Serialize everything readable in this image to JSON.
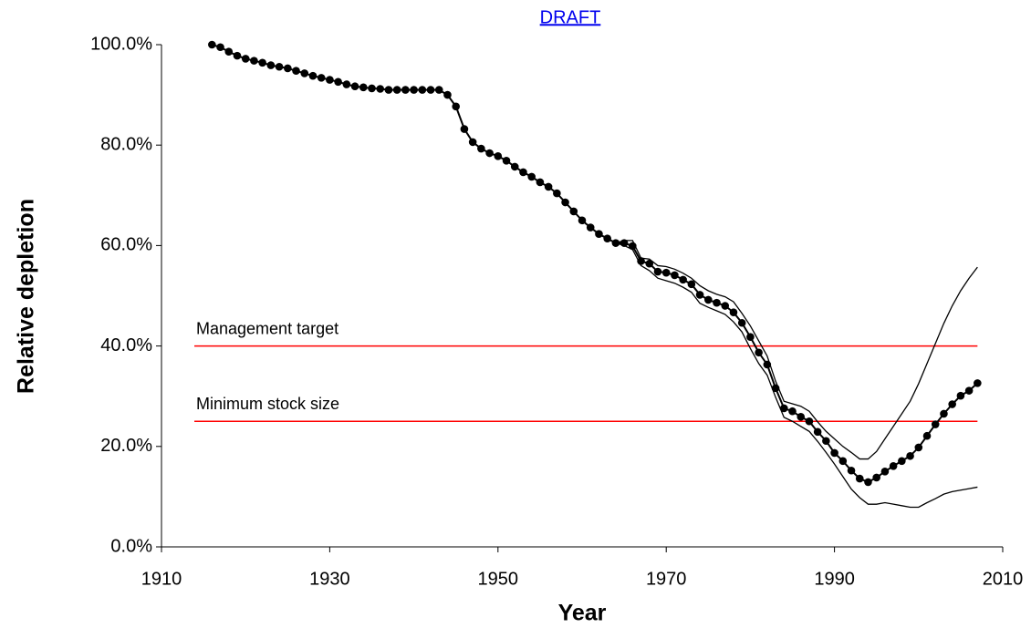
{
  "chart_data": {
    "type": "line",
    "title": "DRAFT",
    "xlabel": "Year",
    "ylabel": "Relative depletion",
    "xlim": [
      1910,
      2010
    ],
    "xticks": [
      1910,
      1930,
      1950,
      1970,
      1990,
      2010
    ],
    "ylim": [
      0,
      100
    ],
    "yticks": [
      {
        "value": 0,
        "label": "0.0%"
      },
      {
        "value": 20,
        "label": "20.0%"
      },
      {
        "value": 40,
        "label": "40.0%"
      },
      {
        "value": 60,
        "label": "60.0%"
      },
      {
        "value": 80,
        "label": "80.0%"
      },
      {
        "value": 100,
        "label": "100.0%"
      }
    ],
    "grid": false,
    "x": [
      1916,
      1917,
      1918,
      1919,
      1920,
      1921,
      1922,
      1923,
      1924,
      1925,
      1926,
      1927,
      1928,
      1929,
      1930,
      1931,
      1932,
      1933,
      1934,
      1935,
      1936,
      1937,
      1938,
      1939,
      1940,
      1941,
      1942,
      1943,
      1944,
      1945,
      1946,
      1947,
      1948,
      1949,
      1950,
      1951,
      1952,
      1953,
      1954,
      1955,
      1956,
      1957,
      1958,
      1959,
      1960,
      1961,
      1962,
      1963,
      1964,
      1965,
      1966,
      1967,
      1968,
      1969,
      1970,
      1971,
      1972,
      1973,
      1974,
      1975,
      1976,
      1977,
      1978,
      1979,
      1980,
      1981,
      1982,
      1983,
      1984,
      1985,
      1986,
      1987,
      1988,
      1989,
      1990,
      1991,
      1992,
      1993,
      1994,
      1995,
      1996,
      1997,
      1998,
      1999,
      2000,
      2001,
      2002,
      2003,
      2004,
      2005,
      2006,
      2007
    ],
    "series": [
      {
        "color": "#000000",
        "marker": true,
        "values": [
          100.0,
          99.5,
          98.6,
          97.8,
          97.2,
          96.8,
          96.4,
          95.9,
          95.6,
          95.3,
          94.8,
          94.3,
          93.8,
          93.4,
          93.0,
          92.6,
          92.1,
          91.7,
          91.5,
          91.3,
          91.2,
          91.0,
          91.0,
          91.0,
          91.0,
          91.0,
          91.0,
          91.0,
          90.0,
          87.7,
          83.2,
          80.6,
          79.3,
          78.4,
          77.8,
          76.9,
          75.7,
          74.6,
          73.7,
          72.6,
          71.7,
          70.4,
          68.6,
          66.8,
          65.0,
          63.6,
          62.3,
          61.4,
          60.5,
          60.5,
          59.9,
          56.9,
          56.4,
          54.8,
          54.6,
          54.1,
          53.2,
          52.3,
          50.2,
          49.2,
          48.6,
          48.0,
          46.7,
          44.6,
          41.8,
          38.7,
          36.3,
          31.6,
          27.6,
          27.0,
          25.9,
          25.0,
          22.9,
          21.1,
          18.7,
          17.1,
          15.2,
          13.6,
          12.9,
          13.8,
          15.0,
          16.1,
          17.1,
          18.1,
          19.8,
          22.1,
          24.4,
          26.5,
          28.4,
          30.1,
          31.1,
          32.6
        ]
      },
      {
        "color": "#000000",
        "marker": false,
        "values": [
          100.0,
          99.5,
          98.6,
          97.8,
          97.2,
          96.8,
          96.4,
          95.9,
          95.6,
          95.3,
          94.8,
          94.3,
          93.8,
          93.4,
          93.0,
          92.6,
          92.1,
          91.7,
          91.5,
          91.3,
          91.2,
          91.0,
          91.0,
          91.0,
          91.0,
          91.0,
          91.0,
          91.0,
          90.0,
          87.7,
          83.2,
          80.6,
          79.3,
          78.4,
          77.8,
          76.9,
          75.7,
          74.6,
          73.7,
          72.6,
          71.7,
          70.4,
          68.6,
          66.8,
          65.0,
          63.6,
          62.3,
          61.4,
          60.5,
          61.0,
          61.0,
          57.5,
          57.3,
          56.0,
          55.8,
          55.3,
          54.5,
          53.5,
          52.0,
          51.0,
          50.3,
          49.8,
          48.8,
          46.5,
          44.0,
          41.0,
          38.0,
          33.0,
          29.0,
          28.5,
          28.0,
          27.0,
          24.9,
          23.0,
          21.5,
          20.0,
          18.8,
          17.5,
          17.5,
          19.0,
          21.5,
          24.0,
          26.5,
          29.0,
          32.5,
          36.5,
          40.5,
          44.5,
          48.0,
          51.0,
          53.5,
          55.7
        ]
      },
      {
        "color": "#000000",
        "marker": false,
        "values": [
          100.0,
          99.5,
          98.6,
          97.8,
          97.2,
          96.8,
          96.4,
          95.9,
          95.6,
          95.3,
          94.8,
          94.3,
          93.8,
          93.4,
          93.0,
          92.6,
          92.1,
          91.7,
          91.5,
          91.3,
          91.2,
          91.0,
          91.0,
          91.0,
          91.0,
          91.0,
          91.0,
          91.0,
          90.0,
          87.7,
          83.2,
          80.6,
          79.3,
          78.4,
          77.8,
          76.9,
          75.7,
          74.6,
          73.7,
          72.6,
          71.7,
          70.4,
          68.6,
          66.8,
          65.0,
          63.6,
          62.3,
          61.4,
          60.5,
          60.0,
          59.2,
          56.0,
          55.0,
          53.5,
          53.0,
          52.5,
          51.7,
          50.7,
          48.5,
          47.7,
          47.0,
          46.3,
          44.8,
          42.8,
          39.5,
          36.5,
          34.2,
          29.8,
          25.8,
          25.0,
          24.0,
          23.0,
          21.0,
          18.8,
          16.5,
          14.0,
          11.5,
          9.8,
          8.5,
          8.5,
          8.8,
          8.5,
          8.2,
          7.9,
          7.9,
          8.8,
          9.6,
          10.5,
          11.0,
          11.3,
          11.6,
          11.9
        ]
      }
    ],
    "hlines": [
      {
        "value": 40,
        "label": "Management target",
        "color": "#ff0000"
      },
      {
        "value": 25,
        "label": "Minimum stock size",
        "color": "#ff0000"
      }
    ]
  }
}
